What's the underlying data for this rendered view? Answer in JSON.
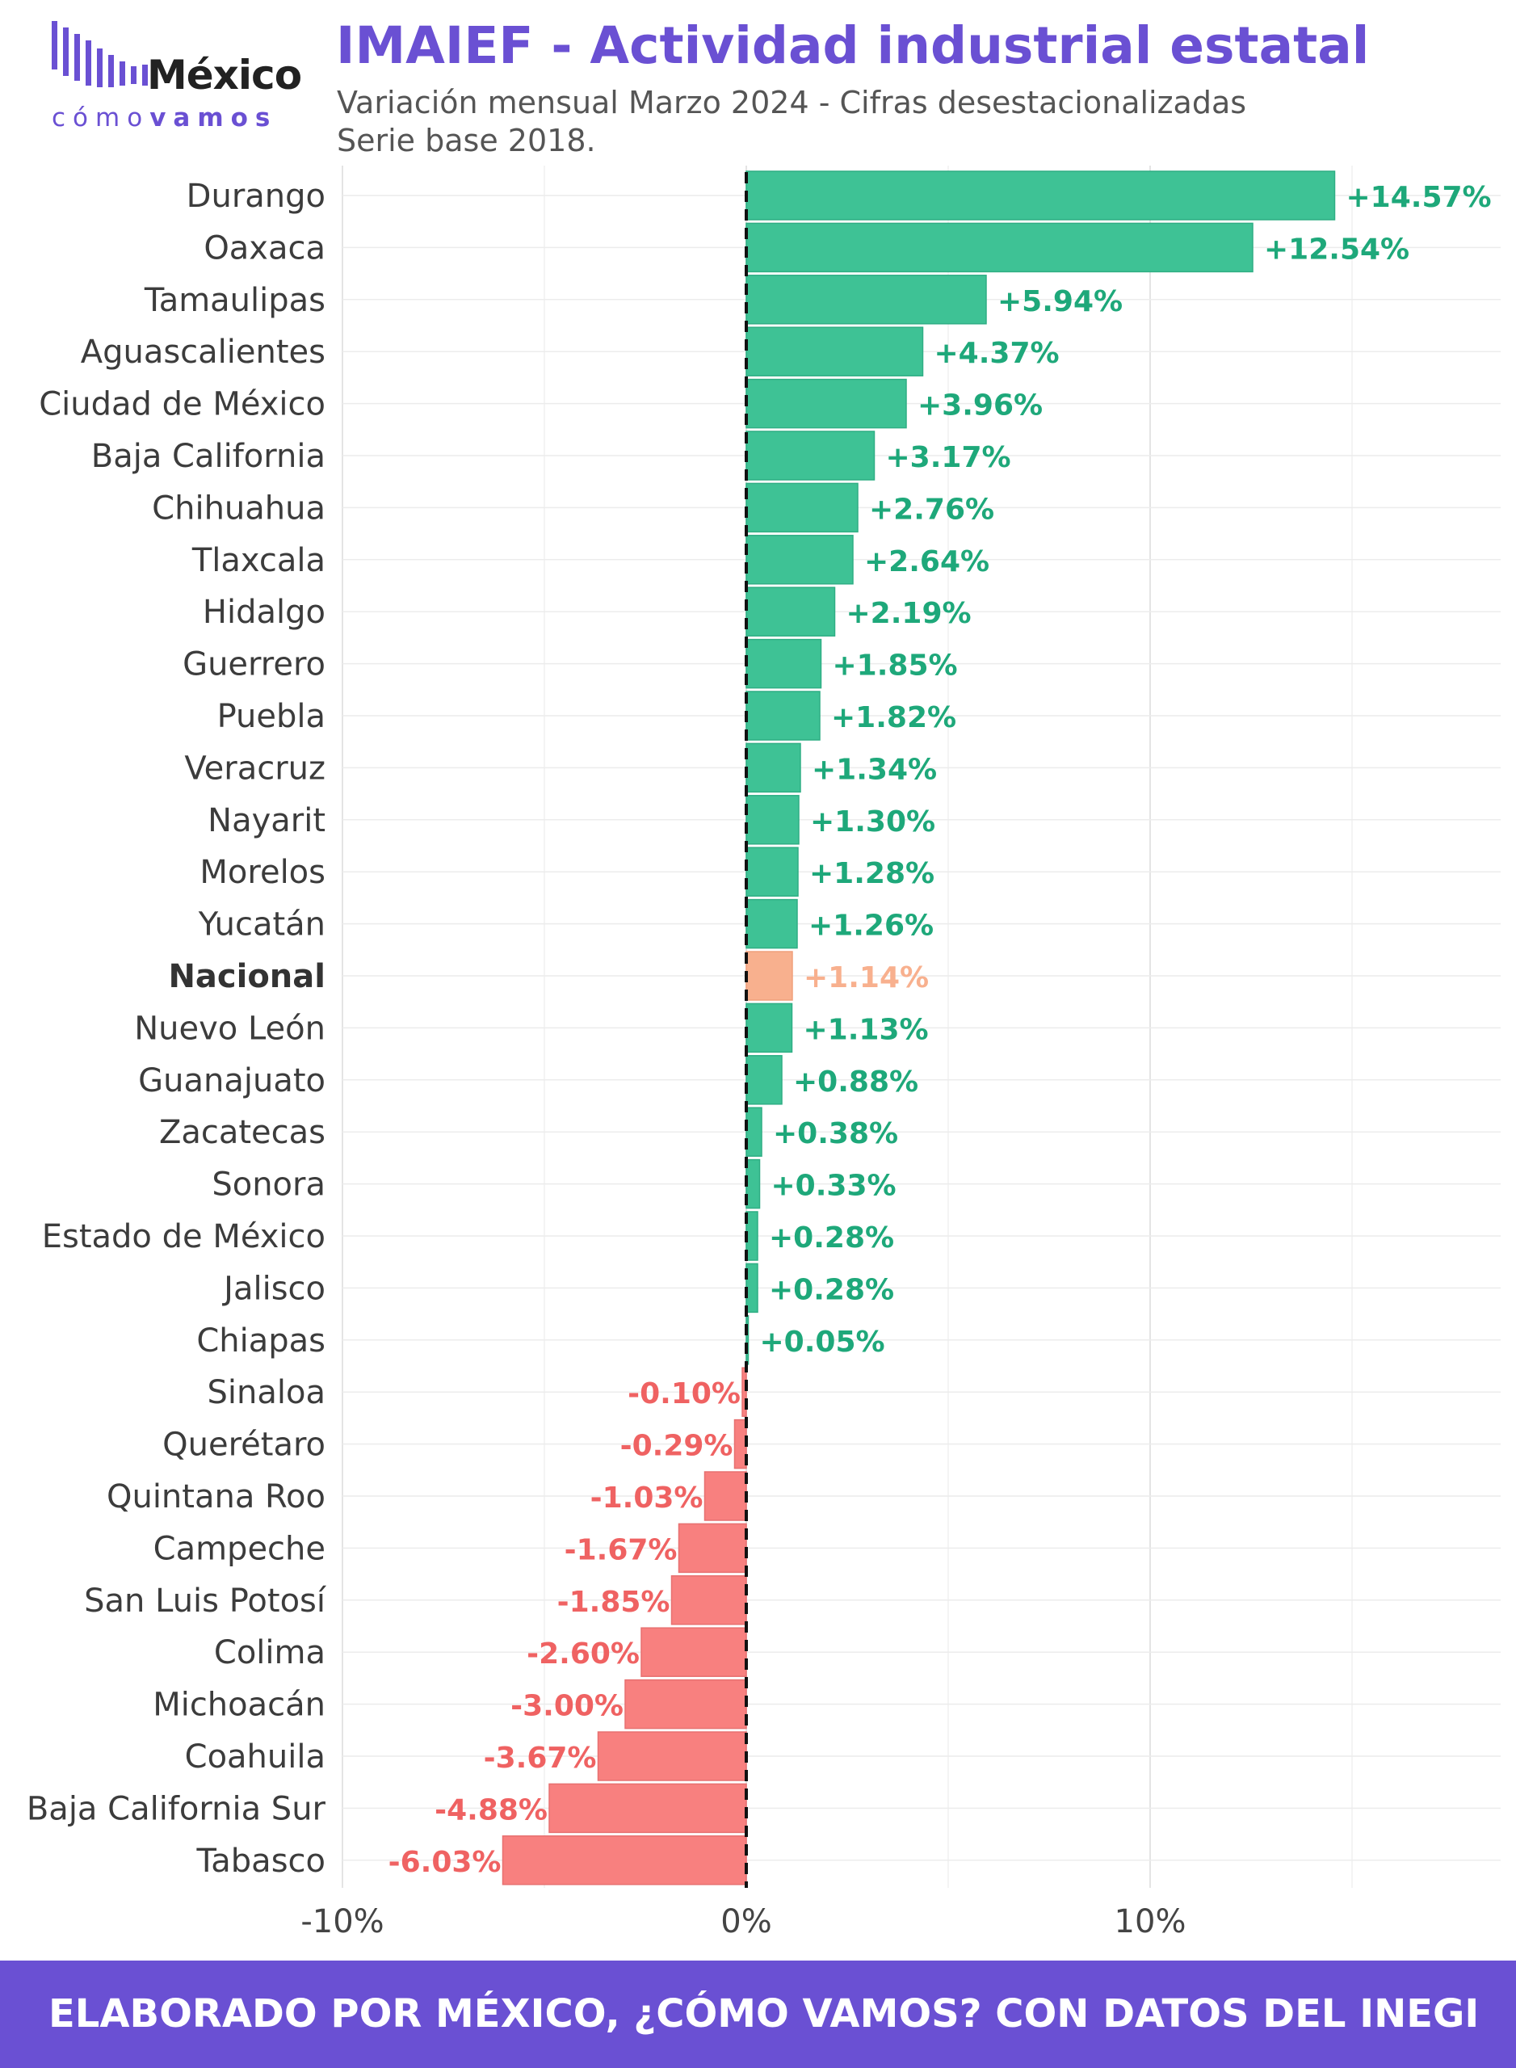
{
  "logo": {
    "brand": "México",
    "tagline_light": "cómo",
    "tagline_bold": "vamos"
  },
  "header": {
    "title": "IMAIEF - Actividad industrial estatal",
    "subtitle_line1": "Variación mensual Marzo 2024 - Cifras desestacionalizadas",
    "subtitle_line2": "Serie base 2018."
  },
  "footer": {
    "text": "ELABORADO POR MÉXICO, ¿CÓMO VAMOS? CON DATOS DEL INEGI"
  },
  "colors": {
    "accent": "#6a50d3",
    "positive": "#3ec295",
    "negative": "#f8807f",
    "national": "#f8b08e"
  },
  "chart_data": {
    "type": "bar",
    "orientation": "horizontal",
    "categories": [
      "Durango",
      "Oaxaca",
      "Tamaulipas",
      "Aguascalientes",
      "Ciudad de México",
      "Baja California",
      "Chihuahua",
      "Tlaxcala",
      "Hidalgo",
      "Guerrero",
      "Puebla",
      "Veracruz",
      "Nayarit",
      "Morelos",
      "Yucatán",
      "Nacional",
      "Nuevo León",
      "Guanajuato",
      "Zacatecas",
      "Sonora",
      "Estado de México",
      "Jalisco",
      "Chiapas",
      "Sinaloa",
      "Querétaro",
      "Quintana Roo",
      "Campeche",
      "San Luis Potosí",
      "Colima",
      "Michoacán",
      "Coahuila",
      "Baja California Sur",
      "Tabasco"
    ],
    "values": [
      14.57,
      12.54,
      5.94,
      4.37,
      3.96,
      3.17,
      2.76,
      2.64,
      2.19,
      1.85,
      1.82,
      1.34,
      1.3,
      1.28,
      1.26,
      1.14,
      1.13,
      0.88,
      0.38,
      0.33,
      0.28,
      0.28,
      0.05,
      -0.1,
      -0.29,
      -1.03,
      -1.67,
      -1.85,
      -2.6,
      -3.0,
      -3.67,
      -4.88,
      -6.03
    ],
    "data_labels": [
      "+14.57%",
      "+12.54%",
      "+5.94%",
      "+4.37%",
      "+3.96%",
      "+3.17%",
      "+2.76%",
      "+2.64%",
      "+2.19%",
      "+1.85%",
      "+1.82%",
      "+1.34%",
      "+1.30%",
      "+1.28%",
      "+1.26%",
      "+1.14%",
      "+1.13%",
      "+0.88%",
      "+0.38%",
      "+0.33%",
      "+0.28%",
      "+0.28%",
      "+0.05%",
      "-0.10%",
      "-0.29%",
      "-1.03%",
      "-1.67%",
      "-1.85%",
      "-2.60%",
      "-3.00%",
      "-3.67%",
      "-4.88%",
      "-6.03%"
    ],
    "highlight": "Nacional",
    "xlim": [
      -10,
      18.5
    ],
    "x_ticks": [
      -10,
      0,
      10
    ],
    "x_tick_labels": [
      "-10%",
      "0%",
      "10%"
    ],
    "zero_line": "dashed",
    "grid": true
  }
}
